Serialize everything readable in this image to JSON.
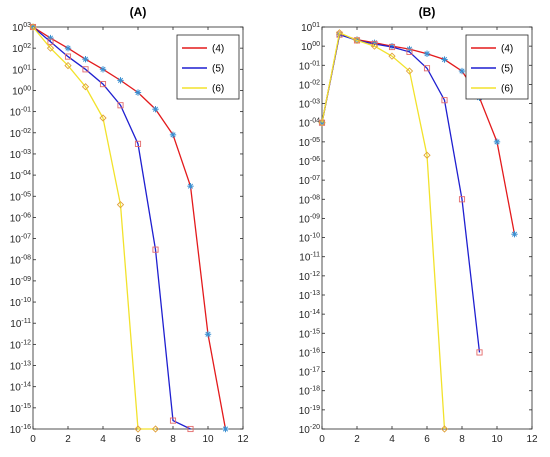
{
  "chart_data": [
    {
      "type": "line",
      "title": "(A)",
      "xlabel": "",
      "ylabel": "",
      "yscale": "log",
      "xlim": [
        0,
        12
      ],
      "ylim_exp": [
        -16,
        3
      ],
      "x_ticks": [
        0,
        2,
        4,
        6,
        8,
        10,
        12
      ],
      "legend": "top-right",
      "series": [
        {
          "name": "(4)",
          "color": "#e31a1c",
          "marker": "star",
          "marker_color": "#3a8fd1",
          "x": [
            0,
            1,
            2,
            3,
            4,
            5,
            6,
            7,
            8,
            9,
            10,
            11
          ],
          "y": [
            1000,
            300,
            100,
            30,
            10,
            3,
            0.8,
            0.13,
            0.008,
            3e-05,
            3e-12,
            1e-16
          ]
        },
        {
          "name": "(5)",
          "color": "#1f1fd0",
          "marker": "square",
          "marker_color": "#e36a6a",
          "x": [
            0,
            1,
            2,
            3,
            4,
            5,
            6,
            7,
            8,
            9
          ],
          "y": [
            1000,
            200,
            40,
            10,
            2,
            0.2,
            0.003,
            3e-08,
            2.5e-16,
            1e-16
          ]
        },
        {
          "name": "(6)",
          "color": "#f2e22b",
          "marker": "diamond",
          "marker_color": "#e0a23a",
          "x": [
            0,
            1,
            2,
            3,
            4,
            5,
            6,
            7
          ],
          "y": [
            1000,
            100,
            15,
            1.5,
            0.05,
            4e-06,
            1e-16,
            1e-16
          ]
        }
      ]
    },
    {
      "type": "line",
      "title": "(B)",
      "xlabel": "",
      "ylabel": "",
      "yscale": "log",
      "xlim": [
        0,
        12
      ],
      "ylim_exp": [
        -20,
        1
      ],
      "x_ticks": [
        0,
        2,
        4,
        6,
        8,
        10,
        12
      ],
      "legend": "top-right",
      "series": [
        {
          "name": "(4)",
          "color": "#e31a1c",
          "marker": "star",
          "marker_color": "#3a8fd1",
          "x": [
            0,
            1,
            2,
            3,
            4,
            5,
            6,
            7,
            8,
            9,
            10,
            11
          ],
          "y": [
            0.0001,
            4,
            2.2,
            1.5,
            1,
            0.7,
            0.4,
            0.2,
            0.05,
            0.002,
            1e-05,
            1.5e-10
          ]
        },
        {
          "name": "(5)",
          "color": "#1f1fd0",
          "marker": "square",
          "marker_color": "#e36a6a",
          "x": [
            0,
            1,
            2,
            3,
            4,
            5,
            6,
            7,
            8,
            9
          ],
          "y": [
            0.0001,
            4,
            2,
            1.3,
            0.9,
            0.5,
            0.07,
            0.0015,
            1e-08,
            1e-16
          ]
        },
        {
          "name": "(6)",
          "color": "#f2e22b",
          "marker": "diamond",
          "marker_color": "#e0a23a",
          "x": [
            0,
            1,
            2,
            3,
            4,
            5,
            6,
            7
          ],
          "y": [
            0.0001,
            5,
            2,
            1,
            0.3,
            0.05,
            2e-06,
            1e-20
          ]
        }
      ]
    }
  ]
}
